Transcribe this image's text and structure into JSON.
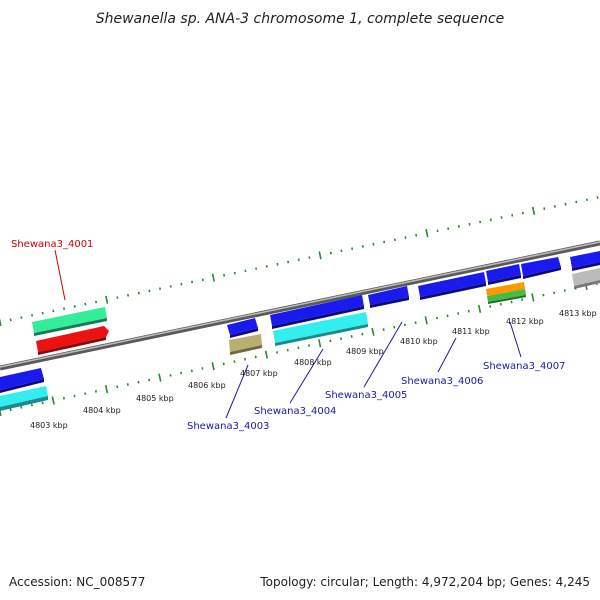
{
  "title": "Shewanella sp. ANA-3 chromosome 1, complete sequence",
  "footer": {
    "accession": "Accession: NC_008577",
    "summary": "Topology: circular; Length: 4,972,204 bp; Genes: 4,245"
  },
  "ruler": {
    "unit": "kbp",
    "labels": [
      {
        "text": "4803 kbp"
      },
      {
        "text": "4804 kbp"
      },
      {
        "text": "4805 kbp"
      },
      {
        "text": "4806 kbp"
      },
      {
        "text": "4807 kbp"
      },
      {
        "text": "4808 kbp"
      },
      {
        "text": "4809 kbp"
      },
      {
        "text": "4810 kbp"
      },
      {
        "text": "4811 kbp"
      },
      {
        "text": "4812 kbp"
      },
      {
        "text": "4813 kbp"
      }
    ]
  },
  "genes": [
    {
      "text": "Shewana3_4001",
      "color": "#cc0000"
    },
    {
      "text": "Shewana3_4003",
      "color": "#1a1aa6"
    },
    {
      "text": "Shewana3_4004",
      "color": "#1a1aa6"
    },
    {
      "text": "Shewana3_4005",
      "color": "#1a1aa6"
    },
    {
      "text": "Shewana3_4006",
      "color": "#1a1aa6"
    },
    {
      "text": "Shewana3_4007",
      "color": "#1a1aa6"
    }
  ],
  "colors": {
    "backbone": "#8c8c8c",
    "tick": "#2a8a2a",
    "blue_feature": "#1a1aee",
    "red_feature": "#ee1111",
    "teal_feature": "#33ee99",
    "cyan_feature": "#33eeee",
    "khaki_feature": "#b8b070",
    "orange_feature": "#ff9900",
    "green_feature": "#44bb44",
    "gray_feature": "#bbbbbb"
  }
}
